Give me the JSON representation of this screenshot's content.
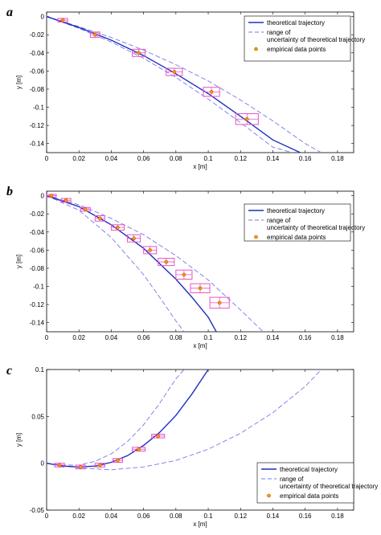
{
  "chart_data": [
    {
      "type": "scatter",
      "panel": "a",
      "xlabel": "x [m]",
      "ylabel": "y [m]",
      "xlim": [
        0,
        0.19
      ],
      "ylim": [
        -0.15,
        0.005
      ],
      "xticks": [
        0,
        0.02,
        0.04,
        0.06,
        0.08,
        0.1,
        0.12,
        0.14,
        0.16,
        0.18
      ],
      "xtick_labels": [
        "0",
        "0.02",
        "0.04",
        "0.06",
        "0.08",
        "0.1",
        "0.12",
        "0.14",
        "0.16",
        "0.18"
      ],
      "yticks": [
        0,
        -0.02,
        -0.04,
        -0.06,
        -0.08,
        -0.1,
        -0.12,
        -0.14
      ],
      "ytick_labels": [
        "0",
        "-0.02",
        "-0.04",
        "-0.06",
        "-0.08",
        "-0.1",
        "-0.12",
        "-0.14"
      ],
      "legend": [
        "theoretical trajectory",
        "range of uncertainty of theoretical trajectory",
        "empirical data points"
      ],
      "legend_position": "top-right",
      "grid": false,
      "series": [
        {
          "name": "theoretical trajectory",
          "style": "solid",
          "x": [
            0,
            0.02,
            0.04,
            0.06,
            0.08,
            0.1,
            0.12,
            0.14,
            0.157
          ],
          "y": [
            0,
            -0.012,
            -0.026,
            -0.043,
            -0.063,
            -0.085,
            -0.11,
            -0.136,
            -0.15
          ]
        },
        {
          "name": "range of uncertainty of theoretical trajectory",
          "style": "dashed",
          "x": [
            0,
            0.02,
            0.04,
            0.06,
            0.08,
            0.1,
            0.12,
            0.14,
            0.16,
            0.17
          ],
          "y": [
            0,
            -0.011,
            -0.023,
            -0.037,
            -0.053,
            -0.071,
            -0.092,
            -0.115,
            -0.14,
            -0.15
          ]
        },
        {
          "name": "",
          "style": "dashed",
          "x": [
            0,
            0.02,
            0.04,
            0.06,
            0.08,
            0.1,
            0.12,
            0.14,
            0.152
          ],
          "y": [
            0,
            -0.013,
            -0.028,
            -0.046,
            -0.067,
            -0.091,
            -0.117,
            -0.144,
            -0.15
          ]
        }
      ],
      "points": [
        {
          "x": 0.01,
          "y": -0.004,
          "ex": 0.003,
          "ey": 0.002
        },
        {
          "x": 0.03,
          "y": -0.02,
          "ex": 0.003,
          "ey": 0.003
        },
        {
          "x": 0.057,
          "y": -0.04,
          "ex": 0.004,
          "ey": 0.004
        },
        {
          "x": 0.079,
          "y": -0.061,
          "ex": 0.005,
          "ey": 0.004
        },
        {
          "x": 0.102,
          "y": -0.083,
          "ex": 0.005,
          "ey": 0.005
        },
        {
          "x": 0.124,
          "y": -0.113,
          "ex": 0.007,
          "ey": 0.006
        }
      ]
    },
    {
      "type": "scatter",
      "panel": "b",
      "xlabel": "x [m]",
      "ylabel": "y [m]",
      "xlim": [
        0,
        0.19
      ],
      "ylim": [
        -0.15,
        0.005
      ],
      "xticks": [
        0,
        0.02,
        0.04,
        0.06,
        0.08,
        0.1,
        0.12,
        0.14,
        0.16,
        0.18
      ],
      "xtick_labels": [
        "0",
        "0.02",
        "0.04",
        "0.06",
        "0.08",
        "0.1",
        "0.12",
        "0.14",
        "0.16",
        "0.18"
      ],
      "yticks": [
        0,
        -0.02,
        -0.04,
        -0.06,
        -0.08,
        -0.1,
        -0.12,
        -0.14
      ],
      "ytick_labels": [
        "0",
        "-0.02",
        "-0.04",
        "-0.06",
        "-0.08",
        "-0.1",
        "-0.12",
        "-0.14"
      ],
      "legend": [
        "theoretical trajectory",
        "range of uncertainty of theoretical trajectory",
        "empirical data points"
      ],
      "legend_position": "top-right",
      "grid": false,
      "series": [
        {
          "name": "theoretical trajectory",
          "style": "solid",
          "x": [
            0,
            0.02,
            0.04,
            0.06,
            0.08,
            0.09,
            0.1,
            0.105
          ],
          "y": [
            0,
            -0.012,
            -0.032,
            -0.058,
            -0.092,
            -0.112,
            -0.134,
            -0.15
          ]
        },
        {
          "name": "range of uncertainty of theoretical trajectory",
          "style": "dashed",
          "x": [
            0,
            0.02,
            0.04,
            0.06,
            0.08,
            0.1,
            0.12,
            0.134
          ],
          "y": [
            0,
            -0.01,
            -0.025,
            -0.043,
            -0.066,
            -0.093,
            -0.126,
            -0.15
          ]
        },
        {
          "name": "",
          "style": "dashed",
          "x": [
            0,
            0.02,
            0.04,
            0.06,
            0.07,
            0.08,
            0.085
          ],
          "y": [
            0,
            -0.016,
            -0.046,
            -0.087,
            -0.112,
            -0.138,
            -0.15
          ]
        }
      ],
      "points": [
        {
          "x": 0.003,
          "y": 0,
          "ex": 0.003,
          "ey": 0.0015
        },
        {
          "x": 0.012,
          "y": -0.005,
          "ex": 0.003,
          "ey": 0.002
        },
        {
          "x": 0.024,
          "y": -0.015,
          "ex": 0.003,
          "ey": 0.002
        },
        {
          "x": 0.033,
          "y": -0.025,
          "ex": 0.003,
          "ey": 0.003
        },
        {
          "x": 0.044,
          "y": -0.035,
          "ex": 0.004,
          "ey": 0.003
        },
        {
          "x": 0.054,
          "y": -0.047,
          "ex": 0.004,
          "ey": 0.004
        },
        {
          "x": 0.064,
          "y": -0.06,
          "ex": 0.004,
          "ey": 0.004
        },
        {
          "x": 0.074,
          "y": -0.073,
          "ex": 0.005,
          "ey": 0.004
        },
        {
          "x": 0.085,
          "y": -0.087,
          "ex": 0.005,
          "ey": 0.005
        },
        {
          "x": 0.095,
          "y": -0.102,
          "ex": 0.006,
          "ey": 0.005
        },
        {
          "x": 0.107,
          "y": -0.118,
          "ex": 0.006,
          "ey": 0.006
        }
      ]
    },
    {
      "type": "scatter",
      "panel": "c",
      "xlabel": "x [m]",
      "ylabel": "y [m]",
      "xlim": [
        0,
        0.19
      ],
      "ylim": [
        -0.05,
        0.1
      ],
      "xticks": [
        0,
        0.02,
        0.04,
        0.06,
        0.08,
        0.1,
        0.12,
        0.14,
        0.16,
        0.18
      ],
      "xtick_labels": [
        "0",
        "0.02",
        "0.04",
        "0.06",
        "0.08",
        "0.1",
        "0.12",
        "0.14",
        "0.16",
        "0.18"
      ],
      "yticks": [
        -0.05,
        0,
        0.05,
        0.1
      ],
      "ytick_labels": [
        "-0.05",
        "0",
        "0.05",
        "0.1"
      ],
      "legend": [
        "theoretical trajectory",
        "range of uncertainty of theoretical trajectory",
        "empirical data points"
      ],
      "legend_position": "bottom-right",
      "grid": false,
      "series": [
        {
          "name": "theoretical trajectory",
          "style": "solid",
          "x": [
            0,
            0.01,
            0.02,
            0.03,
            0.04,
            0.05,
            0.06,
            0.07,
            0.08,
            0.09,
            0.1
          ],
          "y": [
            0,
            -0.003,
            -0.004,
            -0.003,
            0.001,
            0.008,
            0.019,
            0.033,
            0.051,
            0.074,
            0.1
          ]
        },
        {
          "name": "range of uncertainty of theoretical trajectory",
          "style": "dashed",
          "x": [
            0,
            0.01,
            0.02,
            0.03,
            0.04,
            0.05,
            0.06,
            0.07,
            0.08,
            0.085
          ],
          "y": [
            0,
            -0.002,
            -0.002,
            0.002,
            0.01,
            0.023,
            0.041,
            0.064,
            0.09,
            0.1
          ]
        },
        {
          "name": "",
          "style": "dashed",
          "x": [
            0,
            0.02,
            0.04,
            0.06,
            0.08,
            0.1,
            0.12,
            0.14,
            0.16,
            0.17
          ],
          "y": [
            0,
            -0.005,
            -0.007,
            -0.004,
            0.003,
            0.015,
            0.032,
            0.054,
            0.082,
            0.1
          ]
        }
      ],
      "points": [
        {
          "x": 0.008,
          "y": -0.002,
          "ex": 0.003,
          "ey": 0.002
        },
        {
          "x": 0.021,
          "y": -0.004,
          "ex": 0.003,
          "ey": 0.002
        },
        {
          "x": 0.033,
          "y": -0.002,
          "ex": 0.003,
          "ey": 0.002
        },
        {
          "x": 0.044,
          "y": 0.003,
          "ex": 0.003,
          "ey": 0.002
        },
        {
          "x": 0.057,
          "y": 0.015,
          "ex": 0.004,
          "ey": 0.002
        },
        {
          "x": 0.069,
          "y": 0.029,
          "ex": 0.004,
          "ey": 0.002
        }
      ]
    }
  ],
  "colors": {
    "theoretical": "#1f2fbf",
    "uncertainty": "#7777e8",
    "point_fill": "#ff9900",
    "error_box": "#e455c8"
  }
}
